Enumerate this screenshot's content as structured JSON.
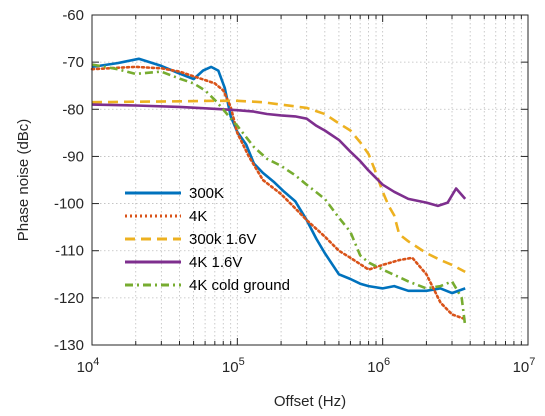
{
  "chart_data": {
    "type": "line",
    "xlabel": "Offset (Hz)",
    "ylabel": "Phase noise (dBc)",
    "xscale": "log",
    "xlim": [
      10000,
      10000000
    ],
    "ylim": [
      -130,
      -60
    ],
    "grid": "major and minor, dotted",
    "legend_position": "lower-left",
    "x_ticks": [
      {
        "value": 10000,
        "base": "10",
        "exp": "4"
      },
      {
        "value": 100000,
        "base": "10",
        "exp": "5"
      },
      {
        "value": 1000000,
        "base": "10",
        "exp": "6"
      },
      {
        "value": 10000000,
        "base": "10",
        "exp": "7"
      }
    ],
    "y_ticks": [
      {
        "value": -60,
        "label": "-60"
      },
      {
        "value": -70,
        "label": "-70"
      },
      {
        "value": -80,
        "label": "-80"
      },
      {
        "value": -90,
        "label": "-90"
      },
      {
        "value": -100,
        "label": "-100"
      },
      {
        "value": -110,
        "label": "-110"
      },
      {
        "value": -120,
        "label": "-120"
      },
      {
        "value": -130,
        "label": "-130"
      }
    ],
    "series": [
      {
        "name": "300K",
        "color": "#0072BD",
        "style": "solid",
        "x": [
          10000,
          15000,
          21000,
          30000,
          40000,
          50000,
          58000,
          66000,
          74000,
          82000,
          90000,
          100000,
          115000,
          130000,
          150000,
          180000,
          210000,
          250000,
          300000,
          350000,
          400000,
          500000,
          600000,
          700000,
          800000,
          1000000,
          1200000,
          1500000,
          2000000,
          2500000,
          3000000,
          3700000
        ],
        "y": [
          -71,
          -70.2,
          -69.3,
          -70.8,
          -72.4,
          -73.6,
          -71.8,
          -71.0,
          -71.8,
          -75.5,
          -81.5,
          -84.8,
          -87.5,
          -91.5,
          -93.5,
          -95.5,
          -97.5,
          -99.5,
          -103.5,
          -107.5,
          -110.5,
          -115.0,
          -116.0,
          -117.0,
          -117.5,
          -118.0,
          -117.5,
          -118.5,
          -118.5,
          -118.0,
          -119.0,
          -118.0
        ]
      },
      {
        "name": "4K",
        "color": "#D95319",
        "style": "dotted",
        "x": [
          10000,
          15000,
          20000,
          30000,
          40000,
          50000,
          60000,
          70000,
          80000,
          90000,
          100000,
          120000,
          150000,
          200000,
          250000,
          300000,
          400000,
          500000,
          600000,
          800000,
          1000000,
          1300000,
          1600000,
          2000000,
          2500000,
          3000000,
          3700000
        ],
        "y": [
          -71.5,
          -71.2,
          -71.0,
          -71.3,
          -72.0,
          -73.0,
          -73.8,
          -74.5,
          -76.0,
          -79.5,
          -85.0,
          -90.0,
          -95.0,
          -98.0,
          -101.0,
          -103.5,
          -107.0,
          -110.0,
          -111.5,
          -114.0,
          -113.0,
          -112.0,
          -111.5,
          -115.0,
          -121.0,
          -123.5,
          -124.5
        ]
      },
      {
        "name": "300k 1.6V",
        "color": "#EDB120",
        "style": "dashed",
        "x": [
          10000,
          20000,
          40000,
          70000,
          100000,
          150000,
          200000,
          300000,
          400000,
          500000,
          600000,
          700000,
          800000,
          900000,
          1000000,
          1100000,
          1200000,
          1300000,
          1500000,
          2000000,
          2500000,
          3000000,
          3700000
        ],
        "y": [
          -78.5,
          -78.4,
          -78.3,
          -78.2,
          -78.2,
          -78.5,
          -79.0,
          -79.7,
          -81.0,
          -83.0,
          -84.5,
          -87.0,
          -89.5,
          -93.5,
          -97.5,
          -100.5,
          -102.5,
          -106.5,
          -108.0,
          -110.5,
          -112.0,
          -113.0,
          -114.5
        ]
      },
      {
        "name": "4K 1.6V",
        "color": "#7E2F8E",
        "style": "solid",
        "x": [
          10000,
          20000,
          40000,
          60000,
          80000,
          100000,
          130000,
          160000,
          200000,
          250000,
          300000,
          350000,
          400000,
          500000,
          600000,
          700000,
          800000,
          1000000,
          1200000,
          1500000,
          2000000,
          2400000,
          2800000,
          3200000,
          3700000
        ],
        "y": [
          -79.0,
          -79.2,
          -79.5,
          -79.8,
          -80.0,
          -80.2,
          -80.5,
          -81.0,
          -81.3,
          -81.5,
          -82.0,
          -83.5,
          -84.5,
          -86.5,
          -89.0,
          -91.0,
          -93.0,
          -96.0,
          -97.5,
          -99.0,
          -99.8,
          -100.5,
          -99.8,
          -96.8,
          -99.0
        ]
      },
      {
        "name": "4K cold ground",
        "color": "#77AC30",
        "style": "dashdot",
        "x": [
          10000,
          15000,
          20000,
          30000,
          40000,
          50000,
          60000,
          70000,
          80000,
          90000,
          100000,
          130000,
          160000,
          200000,
          250000,
          300000,
          400000,
          500000,
          600000,
          700000,
          800000,
          1000000,
          1500000,
          2000000,
          2500000,
          3000000,
          3500000,
          3700000
        ],
        "y": [
          -70.5,
          -71.5,
          -72.5,
          -72.0,
          -73.5,
          -74.5,
          -76.0,
          -78.0,
          -80.0,
          -82.0,
          -83.5,
          -88.0,
          -90.5,
          -92.0,
          -94.0,
          -96.0,
          -99.0,
          -103.0,
          -106.0,
          -111.0,
          -112.5,
          -114.0,
          -116.5,
          -118.0,
          -117.5,
          -116.5,
          -120.0,
          -126.0
        ]
      }
    ]
  }
}
